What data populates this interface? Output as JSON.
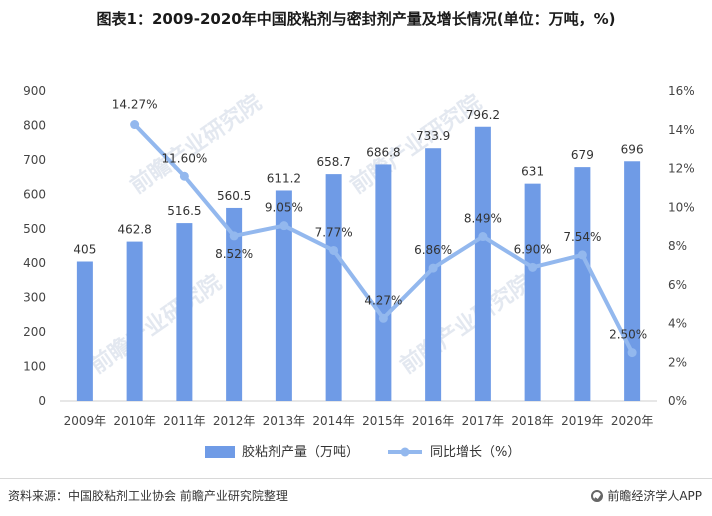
{
  "title": "图表1：2009-2020年中国胶粘剂与密封剂产量及增长情况(单位：万吨，%)",
  "source_text": "资料来源：中国胶粘剂工业协会 前瞻产业研究院整理",
  "brand_text": "前瞻经济学人APP",
  "watermark_text": "前瞻产业研究院",
  "colors": {
    "bar": "#6f9be6",
    "line": "#93b8ee"
  },
  "chart_data": {
    "type": "bar",
    "categories": [
      "2009年",
      "2010年",
      "2011年",
      "2012年",
      "2013年",
      "2014年",
      "2015年",
      "2016年",
      "2017年",
      "2018年",
      "2019年",
      "2020年"
    ],
    "y_ticks": [
      "0",
      "100",
      "200",
      "300",
      "400",
      "500",
      "600",
      "700",
      "800",
      "900"
    ],
    "y2_ticks": [
      "0%",
      "2%",
      "4%",
      "6%",
      "8%",
      "10%",
      "12%",
      "14%",
      "16%"
    ],
    "ylim": [
      0,
      900
    ],
    "y2lim": [
      0,
      16
    ],
    "series": [
      {
        "name": "胶粘剂产量（万吨）",
        "type": "bar",
        "axis": "left",
        "values": [
          405,
          462.8,
          516.5,
          560.5,
          611.2,
          658.7,
          686.8,
          733.9,
          796.2,
          631,
          679,
          696
        ],
        "labels": [
          "405",
          "462.8",
          "516.5",
          "560.5",
          "611.2",
          "658.7",
          "686.8",
          "733.9",
          "796.2",
          "631",
          "679",
          "696"
        ]
      },
      {
        "name": "同比增长（%）",
        "type": "line",
        "axis": "right",
        "values": [
          null,
          14.27,
          11.6,
          8.52,
          9.05,
          7.77,
          4.27,
          6.86,
          8.49,
          6.9,
          7.54,
          2.5
        ],
        "labels": [
          null,
          "14.27%",
          "11.60%",
          "8.52%",
          "9.05%",
          "7.77%",
          "4.27%",
          "6.86%",
          "8.49%",
          "6.90%",
          "7.54%",
          "2.50%"
        ]
      }
    ],
    "legend_position": "bottom",
    "grid": false
  }
}
